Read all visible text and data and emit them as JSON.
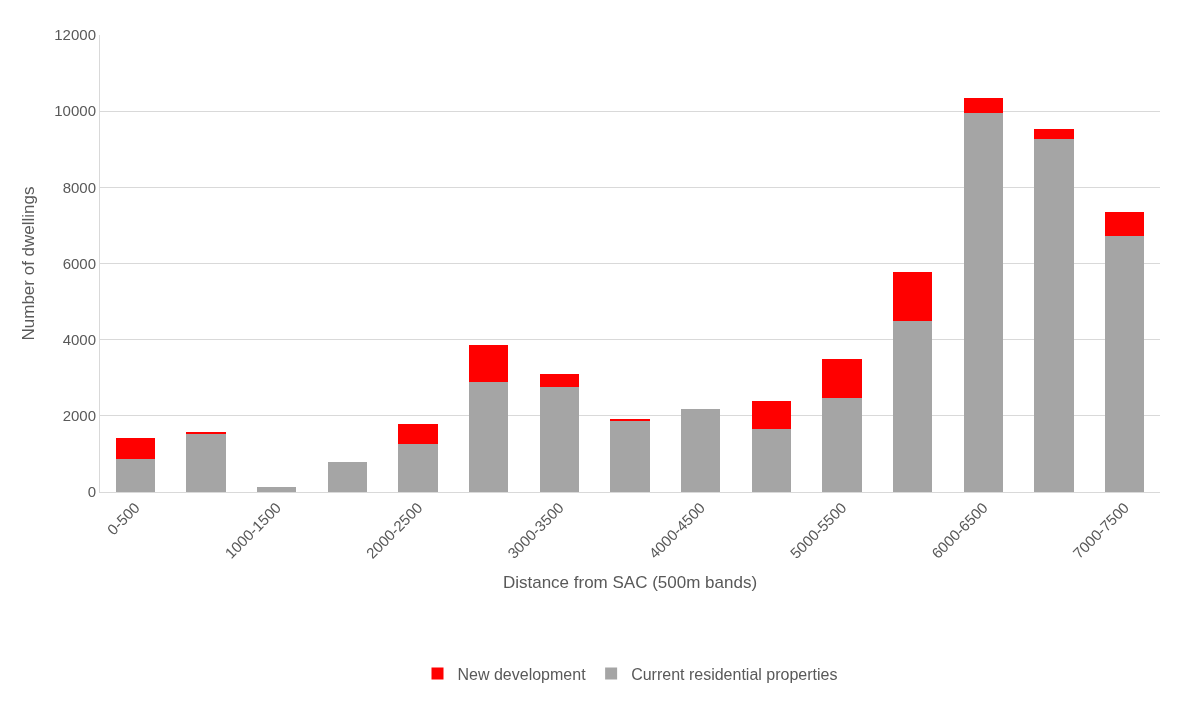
{
  "chart_data": {
    "type": "bar",
    "stacked": true,
    "xlabel": "Distance from SAC (500m bands)",
    "ylabel": "Number of dwellings",
    "categories": [
      "0-500",
      null,
      "1000-1500",
      null,
      "2000-2500",
      null,
      "3000-3500",
      null,
      "4000-4500",
      null,
      "5000-5500",
      null,
      "6000-6500",
      null,
      "7000-7500"
    ],
    "series": [
      {
        "name": "Current residential properties",
        "color": "#a5a5a5",
        "values": [
          870,
          1540,
          130,
          780,
          1250,
          2880,
          2760,
          1870,
          2180,
          1650,
          2470,
          4480,
          9950,
          9280,
          6730
        ]
      },
      {
        "name": "New development",
        "color": "#ff0000",
        "values": [
          550,
          30,
          0,
          0,
          530,
          970,
          350,
          50,
          0,
          750,
          1020,
          1300,
          400,
          240,
          630
        ]
      }
    ],
    "ylim": [
      0,
      12000
    ],
    "yticks": [
      0,
      2000,
      4000,
      6000,
      8000,
      10000,
      12000
    ],
    "grid": "y",
    "legend": "bottom"
  }
}
